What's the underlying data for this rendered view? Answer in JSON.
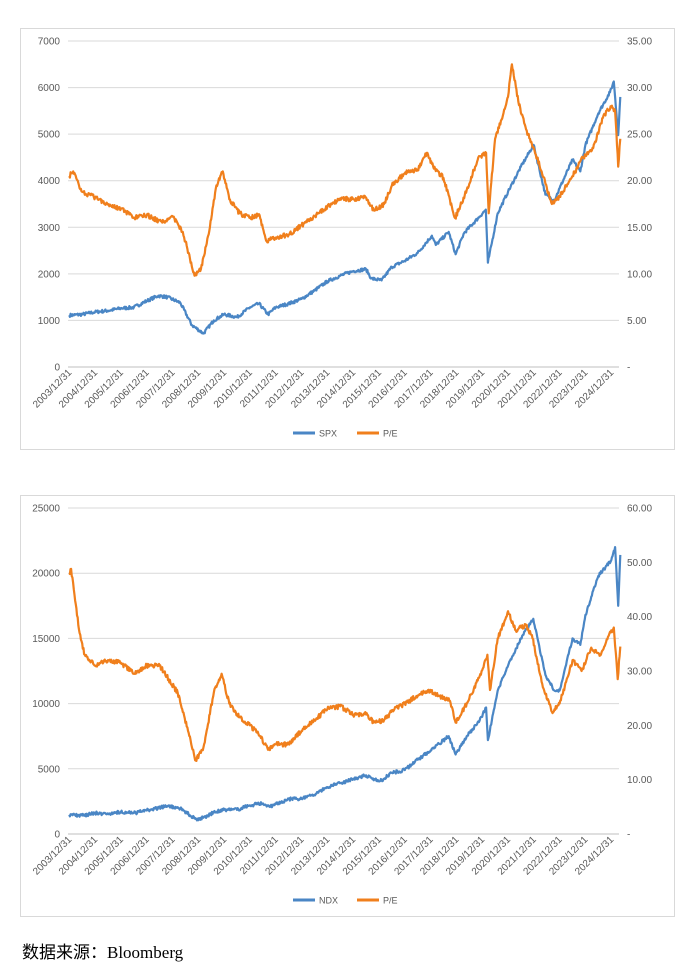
{
  "chart_data": [
    {
      "type": "line",
      "title": "",
      "x_tick_labels": [
        "2003/12/31",
        "2004/12/31",
        "2005/12/31",
        "2006/12/31",
        "2007/12/31",
        "2008/12/31",
        "2009/12/31",
        "2010/12/31",
        "2011/12/31",
        "2012/12/31",
        "2013/12/31",
        "2014/12/31",
        "2015/12/31",
        "2016/12/31",
        "2017/12/31",
        "2018/12/31",
        "2019/12/31",
        "2020/12/31",
        "2021/12/31",
        "2022/12/31",
        "2023/12/31",
        "2024/12/31"
      ],
      "x_range": [
        2003.95,
        2025.3
      ],
      "y_left": {
        "range": [
          0,
          7000
        ],
        "ticks": [
          "0",
          "1000",
          "2000",
          "3000",
          "4000",
          "5000",
          "6000",
          "7000"
        ]
      },
      "y_right": {
        "range": [
          0,
          35
        ],
        "ticks": [
          "-",
          "5.00",
          "10.00",
          "15.00",
          "20.00",
          "25.00",
          "30.00",
          "35.00"
        ]
      },
      "legend": {
        "placement": "bottom",
        "entries": [
          "SPX",
          "P/E"
        ]
      },
      "series": [
        {
          "name": "SPX",
          "axis": "left",
          "color": "#4a86c5",
          "points": [
            [
              2004.0,
              1110
            ],
            [
              2004.5,
              1130
            ],
            [
              2005.0,
              1180
            ],
            [
              2005.5,
              1210
            ],
            [
              2006.0,
              1260
            ],
            [
              2006.5,
              1280
            ],
            [
              2007.0,
              1420
            ],
            [
              2007.45,
              1530
            ],
            [
              2007.8,
              1500
            ],
            [
              2008.3,
              1380
            ],
            [
              2008.75,
              900
            ],
            [
              2009.2,
              720
            ],
            [
              2009.6,
              1000
            ],
            [
              2010.0,
              1130
            ],
            [
              2010.5,
              1070
            ],
            [
              2011.0,
              1280
            ],
            [
              2011.35,
              1360
            ],
            [
              2011.7,
              1130
            ],
            [
              2012.0,
              1280
            ],
            [
              2012.5,
              1360
            ],
            [
              2013.0,
              1460
            ],
            [
              2013.5,
              1640
            ],
            [
              2014.0,
              1840
            ],
            [
              2014.5,
              1960
            ],
            [
              2015.0,
              2060
            ],
            [
              2015.5,
              2100
            ],
            [
              2015.7,
              1900
            ],
            [
              2016.1,
              1860
            ],
            [
              2016.5,
              2150
            ],
            [
              2017.0,
              2280
            ],
            [
              2017.5,
              2450
            ],
            [
              2018.05,
              2820
            ],
            [
              2018.2,
              2620
            ],
            [
              2018.7,
              2900
            ],
            [
              2018.97,
              2420
            ],
            [
              2019.3,
              2880
            ],
            [
              2019.9,
              3230
            ],
            [
              2020.14,
              3380
            ],
            [
              2020.22,
              2240
            ],
            [
              2020.6,
              3300
            ],
            [
              2021.0,
              3760
            ],
            [
              2021.5,
              4300
            ],
            [
              2021.99,
              4770
            ],
            [
              2022.45,
              3700
            ],
            [
              2022.8,
              3580
            ],
            [
              2023.0,
              3840
            ],
            [
              2023.5,
              4450
            ],
            [
              2023.8,
              4200
            ],
            [
              2024.0,
              4770
            ],
            [
              2024.5,
              5450
            ],
            [
              2024.95,
              5900
            ],
            [
              2025.1,
              6130
            ],
            [
              2025.27,
              4980
            ],
            [
              2025.35,
              5800
            ]
          ]
        },
        {
          "name": "P/E",
          "axis": "right",
          "color": "#f07f1c",
          "points": [
            [
              2004.0,
              20.5
            ],
            [
              2004.15,
              21.0
            ],
            [
              2004.5,
              18.8
            ],
            [
              2005.0,
              18.2
            ],
            [
              2005.5,
              17.5
            ],
            [
              2006.0,
              17.0
            ],
            [
              2006.5,
              16.0
            ],
            [
              2007.0,
              16.3
            ],
            [
              2007.6,
              15.5
            ],
            [
              2008.0,
              16.2
            ],
            [
              2008.4,
              14.5
            ],
            [
              2008.85,
              9.8
            ],
            [
              2009.1,
              10.5
            ],
            [
              2009.45,
              15.0
            ],
            [
              2009.7,
              19.5
            ],
            [
              2009.95,
              21.0
            ],
            [
              2010.2,
              18.0
            ],
            [
              2010.6,
              16.5
            ],
            [
              2011.0,
              16.0
            ],
            [
              2011.35,
              16.4
            ],
            [
              2011.65,
              13.5
            ],
            [
              2012.0,
              13.9
            ],
            [
              2012.5,
              14.2
            ],
            [
              2013.0,
              15.2
            ],
            [
              2013.5,
              16.2
            ],
            [
              2014.0,
              17.2
            ],
            [
              2014.5,
              18.1
            ],
            [
              2015.0,
              18.0
            ],
            [
              2015.5,
              18.2
            ],
            [
              2015.8,
              16.8
            ],
            [
              2016.2,
              17.5
            ],
            [
              2016.5,
              19.5
            ],
            [
              2017.0,
              20.8
            ],
            [
              2017.5,
              21.2
            ],
            [
              2017.85,
              23.0
            ],
            [
              2018.1,
              21.5
            ],
            [
              2018.5,
              20.3
            ],
            [
              2018.95,
              16.0
            ],
            [
              2019.4,
              19.0
            ],
            [
              2019.85,
              22.5
            ],
            [
              2020.15,
              23.0
            ],
            [
              2020.25,
              16.5
            ],
            [
              2020.5,
              24.5
            ],
            [
              2020.8,
              27.0
            ],
            [
              2021.0,
              29.0
            ],
            [
              2021.15,
              32.5
            ],
            [
              2021.4,
              28.5
            ],
            [
              2021.7,
              25.5
            ],
            [
              2022.0,
              23.5
            ],
            [
              2022.3,
              21.0
            ],
            [
              2022.7,
              17.5
            ],
            [
              2023.0,
              18.3
            ],
            [
              2023.5,
              20.5
            ],
            [
              2023.9,
              22.5
            ],
            [
              2024.3,
              23.5
            ],
            [
              2024.7,
              27.0
            ],
            [
              2025.0,
              28.0
            ],
            [
              2025.15,
              27.5
            ],
            [
              2025.27,
              21.5
            ],
            [
              2025.35,
              24.5
            ]
          ]
        }
      ]
    },
    {
      "type": "line",
      "title": "",
      "x_tick_labels": [
        "2003/12/31",
        "2004/12/31",
        "2005/12/31",
        "2006/12/31",
        "2007/12/31",
        "2008/12/31",
        "2009/12/31",
        "2010/12/31",
        "2011/12/31",
        "2012/12/31",
        "2013/12/31",
        "2014/12/31",
        "2015/12/31",
        "2016/12/31",
        "2017/12/31",
        "2018/12/31",
        "2019/12/31",
        "2020/12/31",
        "2021/12/31",
        "2022/12/31",
        "2023/12/31",
        "2024/12/31"
      ],
      "x_range": [
        2003.95,
        2025.3
      ],
      "y_left": {
        "range": [
          0,
          25000
        ],
        "ticks": [
          "0",
          "5000",
          "10000",
          "15000",
          "20000",
          "25000"
        ]
      },
      "y_right": {
        "range": [
          0,
          60
        ],
        "ticks": [
          "-",
          "10.00",
          "20.00",
          "30.00",
          "40.00",
          "50.00",
          "60.00"
        ]
      },
      "legend": {
        "placement": "bottom",
        "entries": [
          "NDX",
          "P/E"
        ]
      },
      "series": [
        {
          "name": "NDX",
          "axis": "left",
          "color": "#4a86c5",
          "points": [
            [
              2004.0,
              1480
            ],
            [
              2004.5,
              1420
            ],
            [
              2005.0,
              1600
            ],
            [
              2005.5,
              1550
            ],
            [
              2006.0,
              1700
            ],
            [
              2006.5,
              1600
            ],
            [
              2007.0,
              1800
            ],
            [
              2007.8,
              2150
            ],
            [
              2008.3,
              1950
            ],
            [
              2008.9,
              1150
            ],
            [
              2009.2,
              1250
            ],
            [
              2009.6,
              1650
            ],
            [
              2010.0,
              1860
            ],
            [
              2010.5,
              1850
            ],
            [
              2011.0,
              2200
            ],
            [
              2011.5,
              2350
            ],
            [
              2011.75,
              2100
            ],
            [
              2012.0,
              2300
            ],
            [
              2012.6,
              2700
            ],
            [
              2013.0,
              2700
            ],
            [
              2013.5,
              3000
            ],
            [
              2014.0,
              3600
            ],
            [
              2014.5,
              3900
            ],
            [
              2015.0,
              4200
            ],
            [
              2015.5,
              4500
            ],
            [
              2015.75,
              4200
            ],
            [
              2016.1,
              4100
            ],
            [
              2016.5,
              4700
            ],
            [
              2017.0,
              4900
            ],
            [
              2017.5,
              5700
            ],
            [
              2018.0,
              6400
            ],
            [
              2018.7,
              7500
            ],
            [
              2018.97,
              6100
            ],
            [
              2019.4,
              7500
            ],
            [
              2019.9,
              8700
            ],
            [
              2020.15,
              9700
            ],
            [
              2020.22,
              7200
            ],
            [
              2020.6,
              11000
            ],
            [
              2021.0,
              12900
            ],
            [
              2021.5,
              15000
            ],
            [
              2021.98,
              16500
            ],
            [
              2022.45,
              12200
            ],
            [
              2022.8,
              11000
            ],
            [
              2023.0,
              11000
            ],
            [
              2023.5,
              15000
            ],
            [
              2023.8,
              14500
            ],
            [
              2024.0,
              16800
            ],
            [
              2024.5,
              19800
            ],
            [
              2025.0,
              21000
            ],
            [
              2025.15,
              22000
            ],
            [
              2025.27,
              17500
            ],
            [
              2025.35,
              21400
            ]
          ]
        },
        {
          "name": "P/E",
          "axis": "right",
          "color": "#f07f1c",
          "points": [
            [
              2004.0,
              48.0
            ],
            [
              2004.07,
              48.8
            ],
            [
              2004.2,
              44.0
            ],
            [
              2004.4,
              37.0
            ],
            [
              2004.6,
              33.0
            ],
            [
              2005.0,
              31.0
            ],
            [
              2005.5,
              32.0
            ],
            [
              2006.0,
              31.5
            ],
            [
              2006.5,
              29.5
            ],
            [
              2007.0,
              31.0
            ],
            [
              2007.5,
              31.0
            ],
            [
              2007.85,
              28.5
            ],
            [
              2008.2,
              26.0
            ],
            [
              2008.6,
              19.0
            ],
            [
              2008.9,
              13.5
            ],
            [
              2009.2,
              16.0
            ],
            [
              2009.6,
              26.0
            ],
            [
              2009.9,
              29.5
            ],
            [
              2010.2,
              24.0
            ],
            [
              2010.6,
              21.5
            ],
            [
              2011.0,
              20.0
            ],
            [
              2011.4,
              18.0
            ],
            [
              2011.7,
              15.5
            ],
            [
              2012.0,
              16.5
            ],
            [
              2012.5,
              16.5
            ],
            [
              2013.0,
              19.0
            ],
            [
              2013.5,
              21.0
            ],
            [
              2014.0,
              23.0
            ],
            [
              2014.5,
              23.5
            ],
            [
              2015.0,
              22.0
            ],
            [
              2015.5,
              22.0
            ],
            [
              2015.8,
              20.5
            ],
            [
              2016.2,
              21.0
            ],
            [
              2016.6,
              23.0
            ],
            [
              2017.0,
              24.0
            ],
            [
              2017.5,
              25.5
            ],
            [
              2017.9,
              26.5
            ],
            [
              2018.3,
              25.5
            ],
            [
              2018.75,
              24.5
            ],
            [
              2018.97,
              20.5
            ],
            [
              2019.4,
              24.0
            ],
            [
              2019.9,
              29.0
            ],
            [
              2020.2,
              33.0
            ],
            [
              2020.3,
              26.5
            ],
            [
              2020.6,
              36.0
            ],
            [
              2020.85,
              39.0
            ],
            [
              2021.0,
              41.0
            ],
            [
              2021.3,
              37.5
            ],
            [
              2021.7,
              38.5
            ],
            [
              2021.95,
              36.0
            ],
            [
              2022.3,
              28.0
            ],
            [
              2022.7,
              22.5
            ],
            [
              2023.0,
              24.0
            ],
            [
              2023.5,
              32.0
            ],
            [
              2023.85,
              30.0
            ],
            [
              2024.2,
              34.0
            ],
            [
              2024.6,
              33.0
            ],
            [
              2024.9,
              36.5
            ],
            [
              2025.1,
              38.0
            ],
            [
              2025.25,
              28.5
            ],
            [
              2025.35,
              34.5
            ]
          ]
        }
      ]
    }
  ],
  "source": {
    "label": "数据来源：",
    "value": "Bloomberg"
  }
}
